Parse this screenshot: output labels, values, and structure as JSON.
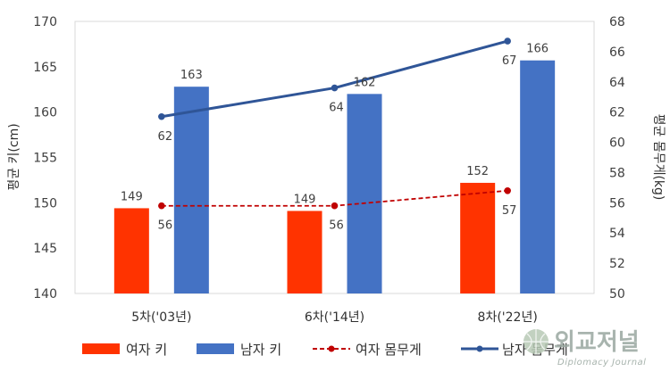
{
  "chart_data": {
    "type": "bar+line",
    "categories": [
      "5차('03년)",
      "6차('14년)",
      "8차('22년)"
    ],
    "bar_series": [
      {
        "name": "여자 키",
        "values": [
          149,
          149,
          152
        ],
        "labels": [
          "149",
          "149",
          "152"
        ],
        "color": "#ff3300"
      },
      {
        "name": "남자 키",
        "values": [
          163,
          162,
          166
        ],
        "labels": [
          "163",
          "162",
          "166"
        ],
        "color": "#4472c4"
      }
    ],
    "line_series": [
      {
        "name": "여자 몸무게",
        "values": [
          56,
          56,
          57
        ],
        "labels": [
          "56",
          "56",
          "57"
        ],
        "color": "#c00000",
        "dashed": true
      },
      {
        "name": "남자 몸무게",
        "values": [
          62,
          64,
          67
        ],
        "labels": [
          "62",
          "64",
          "67"
        ],
        "color": "#2f5597",
        "dashed": false
      }
    ],
    "bar_value_used_for_height": [
      149.4,
      149.1,
      152.2,
      162.8,
      162.0,
      165.7
    ],
    "line_value_used_for_position": [
      55.8,
      55.8,
      56.8,
      61.7,
      63.6,
      66.7
    ],
    "ylabel": "평균 키(cm)",
    "y2label": "평균 몸무게(kg)",
    "ylim": [
      140,
      170
    ],
    "yticks": [
      "140",
      "145",
      "150",
      "155",
      "160",
      "165",
      "170"
    ],
    "y2lim": [
      50,
      68
    ],
    "y2ticks": [
      "50",
      "52",
      "54",
      "56",
      "58",
      "60",
      "62",
      "64",
      "66",
      "68"
    ],
    "legend_position": "bottom",
    "grid": false
  },
  "watermark": {
    "title": "외교저널",
    "subtitle": "Diplomacy Journal"
  }
}
